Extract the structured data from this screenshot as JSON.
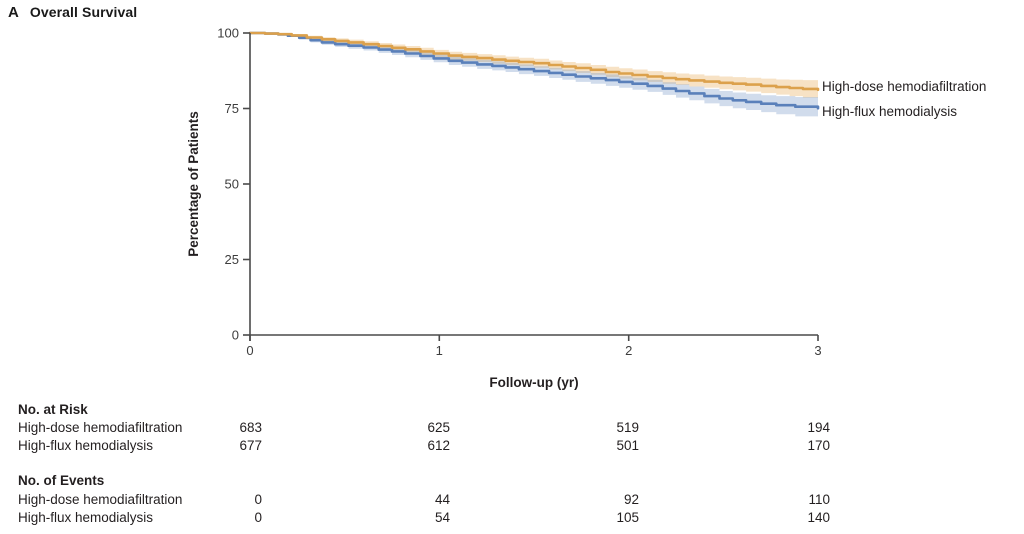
{
  "panel_label": "A",
  "title": "Overall Survival",
  "axes": {
    "y_label": "Percentage of Patients",
    "x_label": "Follow-up (yr)",
    "y_ticks": [
      "100",
      "75",
      "50",
      "25",
      "0"
    ],
    "x_ticks": [
      "0",
      "1",
      "2",
      "3"
    ]
  },
  "legend": [
    {
      "label": "High-dose hemodiafiltration",
      "color": "#DCA14C"
    },
    {
      "label": "High-flux hemodialysis",
      "color": "#5A80BA"
    }
  ],
  "colors": {
    "hdf_line": "#DCA14C",
    "hdf_band": "rgba(231,173,88,0.35)",
    "hd_line": "#5A80BA",
    "hd_band": "rgba(104,138,193,0.30)",
    "axis": "#4a4a4a"
  },
  "chart_data": {
    "type": "line",
    "subtype": "kaplan-meier-step-with-confidence-bands",
    "title": "Overall Survival",
    "xlabel": "Follow-up (yr)",
    "ylabel": "Percentage of Patients",
    "xlim": [
      0,
      3
    ],
    "ylim": [
      0,
      100
    ],
    "x_tick_values": [
      0,
      1,
      2,
      3
    ],
    "y_tick_values": [
      100,
      75,
      50,
      25,
      0
    ],
    "grid": false,
    "legend_position": "right-of-curves",
    "series": [
      {
        "name": "High-dose hemodiafiltration",
        "color": "#DCA14C",
        "band_color": "rgba(231,173,88,0.35)",
        "points_xyd": [
          [
            0,
            100,
            0
          ],
          [
            0.08,
            99.8,
            0.2
          ],
          [
            0.15,
            99.6,
            0.3
          ],
          [
            0.22,
            99.2,
            0.4
          ],
          [
            0.3,
            98.5,
            0.6
          ],
          [
            0.38,
            97.9,
            0.7
          ],
          [
            0.45,
            97.4,
            0.8
          ],
          [
            0.52,
            96.9,
            0.9
          ],
          [
            0.6,
            96.3,
            1.0
          ],
          [
            0.68,
            95.7,
            1.0
          ],
          [
            0.75,
            95.1,
            1.1
          ],
          [
            0.82,
            94.6,
            1.1
          ],
          [
            0.9,
            93.9,
            1.2
          ],
          [
            0.97,
            93.2,
            1.2
          ],
          [
            1.05,
            92.5,
            1.3
          ],
          [
            1.12,
            92.1,
            1.3
          ],
          [
            1.2,
            91.7,
            1.3
          ],
          [
            1.28,
            91.2,
            1.4
          ],
          [
            1.35,
            90.8,
            1.4
          ],
          [
            1.42,
            90.4,
            1.4
          ],
          [
            1.5,
            90.0,
            1.5
          ],
          [
            1.58,
            89.4,
            1.5
          ],
          [
            1.65,
            88.9,
            1.5
          ],
          [
            1.72,
            88.4,
            1.6
          ],
          [
            1.8,
            87.8,
            1.6
          ],
          [
            1.88,
            87.1,
            1.7
          ],
          [
            1.95,
            86.6,
            1.7
          ],
          [
            2.02,
            86.1,
            1.8
          ],
          [
            2.1,
            85.6,
            1.8
          ],
          [
            2.18,
            85.1,
            1.9
          ],
          [
            2.25,
            84.7,
            1.9
          ],
          [
            2.32,
            84.3,
            2.0
          ],
          [
            2.4,
            83.9,
            2.0
          ],
          [
            2.48,
            83.5,
            2.1
          ],
          [
            2.55,
            83.2,
            2.2
          ],
          [
            2.62,
            82.9,
            2.3
          ],
          [
            2.7,
            82.5,
            2.4
          ],
          [
            2.78,
            82.1,
            2.5
          ],
          [
            2.85,
            81.8,
            2.7
          ],
          [
            2.92,
            81.5,
            2.9
          ],
          [
            3,
            81.2,
            3.1
          ]
        ]
      },
      {
        "name": "High-flux hemodialysis",
        "color": "#5A80BA",
        "band_color": "rgba(104,138,193,0.30)",
        "points_xyd": [
          [
            0,
            100,
            0
          ],
          [
            0.08,
            99.8,
            0.2
          ],
          [
            0.15,
            99.5,
            0.3
          ],
          [
            0.2,
            99.1,
            0.4
          ],
          [
            0.26,
            98.4,
            0.5
          ],
          [
            0.32,
            97.6,
            0.7
          ],
          [
            0.38,
            96.9,
            0.8
          ],
          [
            0.45,
            96.3,
            0.9
          ],
          [
            0.52,
            95.8,
            1.0
          ],
          [
            0.6,
            95.2,
            1.0
          ],
          [
            0.68,
            94.5,
            1.1
          ],
          [
            0.75,
            93.9,
            1.2
          ],
          [
            0.82,
            93.2,
            1.2
          ],
          [
            0.9,
            92.4,
            1.3
          ],
          [
            0.97,
            91.6,
            1.3
          ],
          [
            1.05,
            90.8,
            1.4
          ],
          [
            1.12,
            90.2,
            1.4
          ],
          [
            1.2,
            89.6,
            1.5
          ],
          [
            1.28,
            89.1,
            1.5
          ],
          [
            1.35,
            88.6,
            1.5
          ],
          [
            1.42,
            88.0,
            1.6
          ],
          [
            1.5,
            87.4,
            1.6
          ],
          [
            1.58,
            86.8,
            1.7
          ],
          [
            1.65,
            86.2,
            1.7
          ],
          [
            1.72,
            85.6,
            1.8
          ],
          [
            1.8,
            85.0,
            1.8
          ],
          [
            1.88,
            84.4,
            1.9
          ],
          [
            1.95,
            83.8,
            1.9
          ],
          [
            2.02,
            83.2,
            2.0
          ],
          [
            2.1,
            82.5,
            2.0
          ],
          [
            2.18,
            81.6,
            2.1
          ],
          [
            2.25,
            80.8,
            2.2
          ],
          [
            2.32,
            80.0,
            2.3
          ],
          [
            2.4,
            79.1,
            2.4
          ],
          [
            2.48,
            78.3,
            2.5
          ],
          [
            2.55,
            77.7,
            2.6
          ],
          [
            2.62,
            77.2,
            2.7
          ],
          [
            2.7,
            76.6,
            2.8
          ],
          [
            2.78,
            76.1,
            3.0
          ],
          [
            2.88,
            75.6,
            3.2
          ],
          [
            3,
            75.1,
            3.4
          ]
        ]
      }
    ]
  },
  "tables": [
    {
      "header": "No. at Risk",
      "rows": [
        {
          "label": "High-dose hemodiafiltration",
          "values": [
            "683",
            "625",
            "519",
            "194"
          ]
        },
        {
          "label": "High-flux hemodialysis",
          "values": [
            "677",
            "612",
            "501",
            "170"
          ]
        }
      ]
    },
    {
      "header": "No. of Events",
      "rows": [
        {
          "label": "High-dose hemodiafiltration",
          "values": [
            "0",
            "44",
            "92",
            "110"
          ]
        },
        {
          "label": "High-flux hemodialysis",
          "values": [
            "0",
            "54",
            "105",
            "140"
          ]
        }
      ]
    }
  ]
}
